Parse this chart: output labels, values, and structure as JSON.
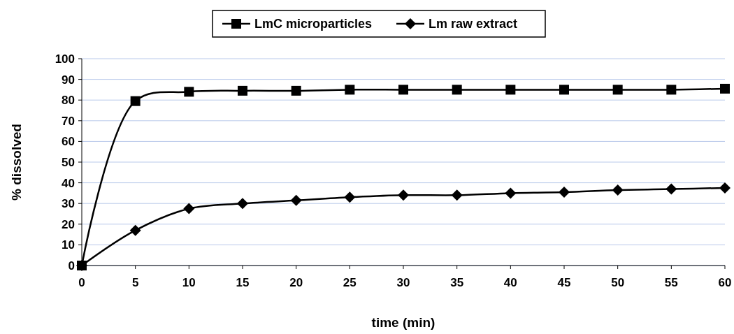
{
  "chart_data": {
    "type": "line",
    "xlabel": "time (min)",
    "ylabel": "% dissolved",
    "x": [
      0,
      5,
      10,
      15,
      20,
      25,
      30,
      35,
      40,
      45,
      50,
      55,
      60
    ],
    "series": [
      {
        "name": "LmC microparticles",
        "color": "#000000",
        "marker": "square",
        "values": [
          0,
          79.5,
          84,
          84.5,
          84.5,
          85,
          85,
          85,
          85,
          85,
          85,
          85,
          85.5
        ]
      },
      {
        "name": "Lm raw extract",
        "color": "#000000",
        "marker": "diamond",
        "values": [
          0,
          17,
          27.5,
          30,
          31.5,
          33,
          34,
          34,
          35,
          35.5,
          36.5,
          37,
          37.5
        ]
      }
    ],
    "xlim": [
      0,
      60
    ],
    "xticks": [
      0,
      5,
      10,
      15,
      20,
      25,
      30,
      35,
      40,
      45,
      50,
      55,
      60
    ],
    "ylim": [
      0,
      100
    ],
    "yticks": [
      0,
      10,
      20,
      30,
      40,
      50,
      60,
      70,
      80,
      90,
      100
    ],
    "grid": "y",
    "legend": "top",
    "line_style": "solid"
  }
}
